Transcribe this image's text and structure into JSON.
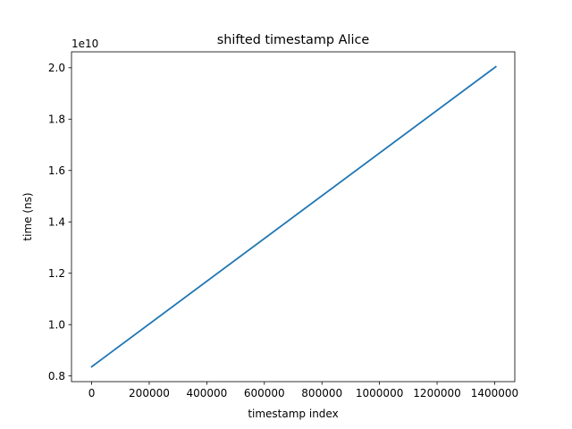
{
  "chart_data": {
    "type": "line",
    "title": "shifted timestamp Alice",
    "xlabel": "timestamp index",
    "ylabel": "time (ns)",
    "y_offset_label": "1e10",
    "xlim": [
      -70000,
      1470000
    ],
    "ylim": [
      0.778,
      2.062
    ],
    "y_unit_multiplier": 10000000000,
    "xticks": [
      0,
      200000,
      400000,
      600000,
      800000,
      1000000,
      1200000,
      1400000
    ],
    "xtick_labels": [
      "0",
      "200000",
      "400000",
      "600000",
      "800000",
      "1000000",
      "1200000",
      "1400000"
    ],
    "yticks": [
      0.8,
      1.0,
      1.2,
      1.4,
      1.6,
      1.8,
      2.0
    ],
    "ytick_labels": [
      "0.8",
      "1.0",
      "1.2",
      "1.4",
      "1.6",
      "1.8",
      "2.0"
    ],
    "grid": false,
    "legend": "none",
    "series": [
      {
        "color": "#1f77b4",
        "x": [
          0,
          1404000
        ],
        "y": [
          0.836,
          2.004
        ]
      }
    ]
  }
}
